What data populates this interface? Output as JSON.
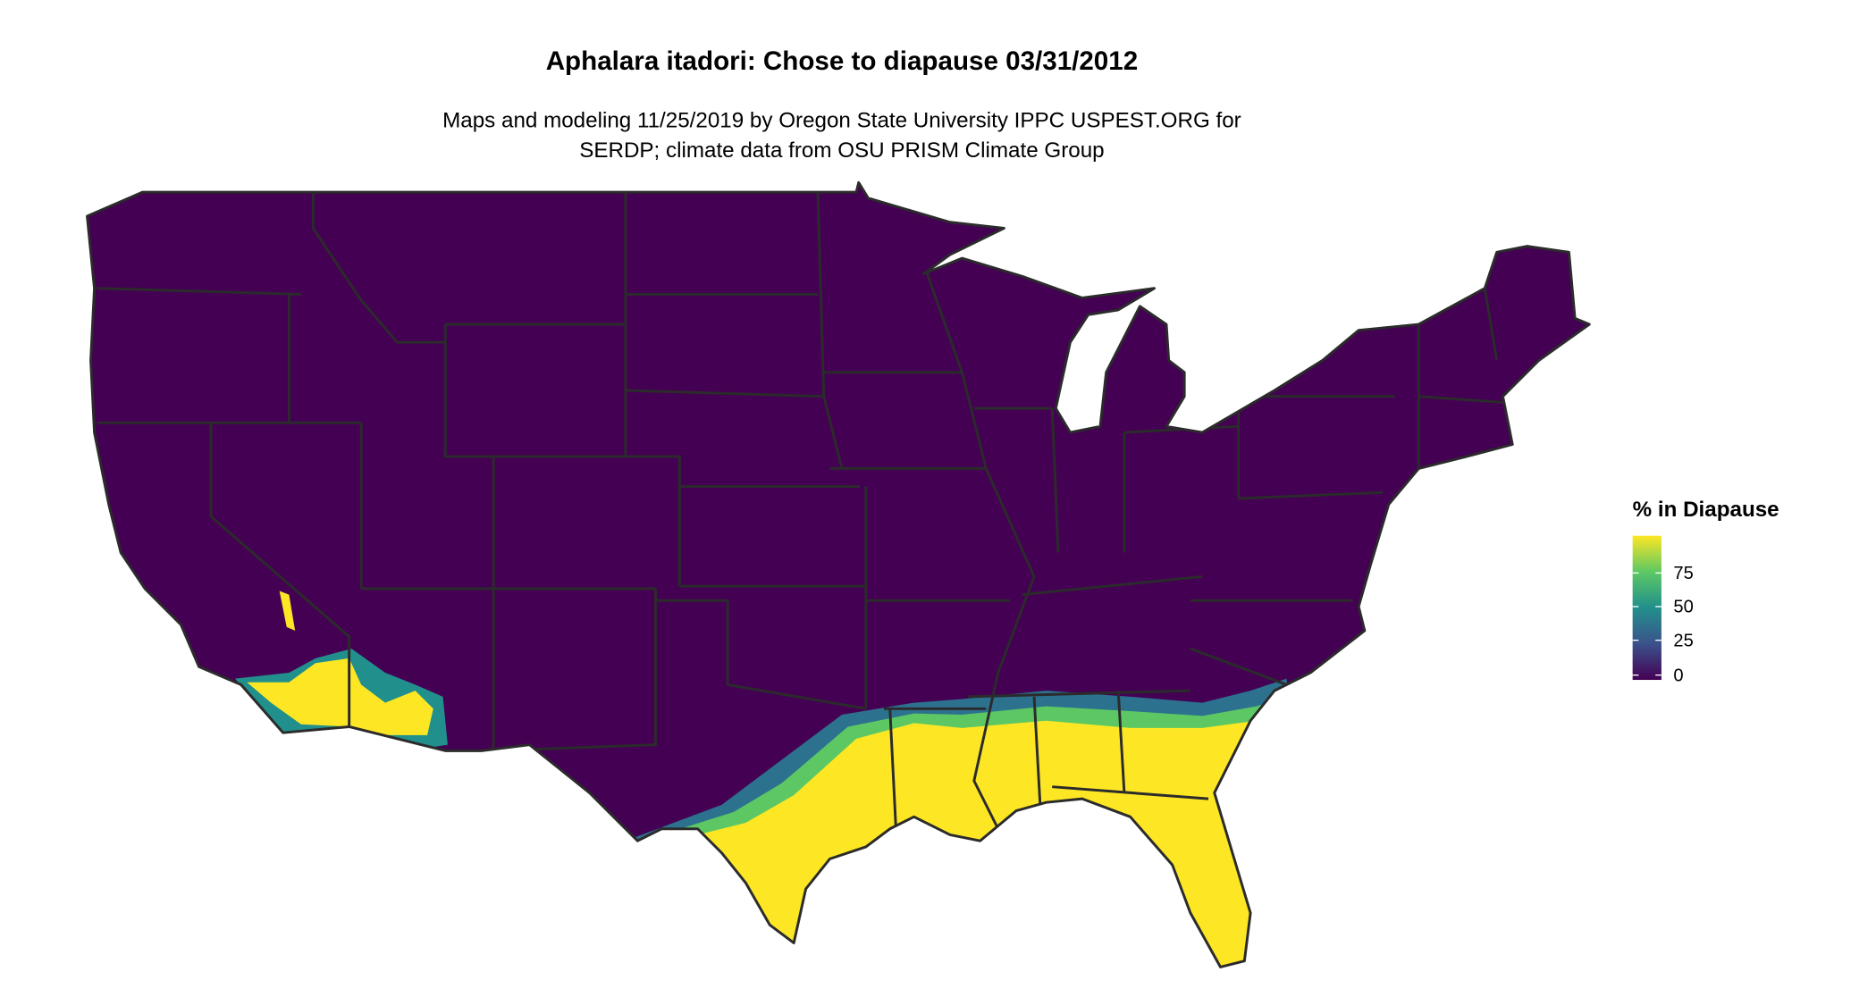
{
  "title": "Aphalara itadori: Chose to diapause 03/31/2012",
  "subtitle_line1": "Maps and modeling 11/25/2019 by Oregon State University IPPC USPEST.ORG for",
  "subtitle_line2": "SERDP; climate data from OSU PRISM Climate Group",
  "legend": {
    "title": "% in Diapause",
    "ticks": [
      "75",
      "50",
      "25",
      "0"
    ],
    "range": [
      0,
      100
    ],
    "palette": "viridis",
    "colors": [
      "#440154",
      "#3b528b",
      "#21908c",
      "#5dc863",
      "#fde725"
    ]
  },
  "map": {
    "region": "contiguous United States",
    "background_value_color": "#440154",
    "high_value_color": "#fde725",
    "border_color": "#2b2b2b"
  }
}
